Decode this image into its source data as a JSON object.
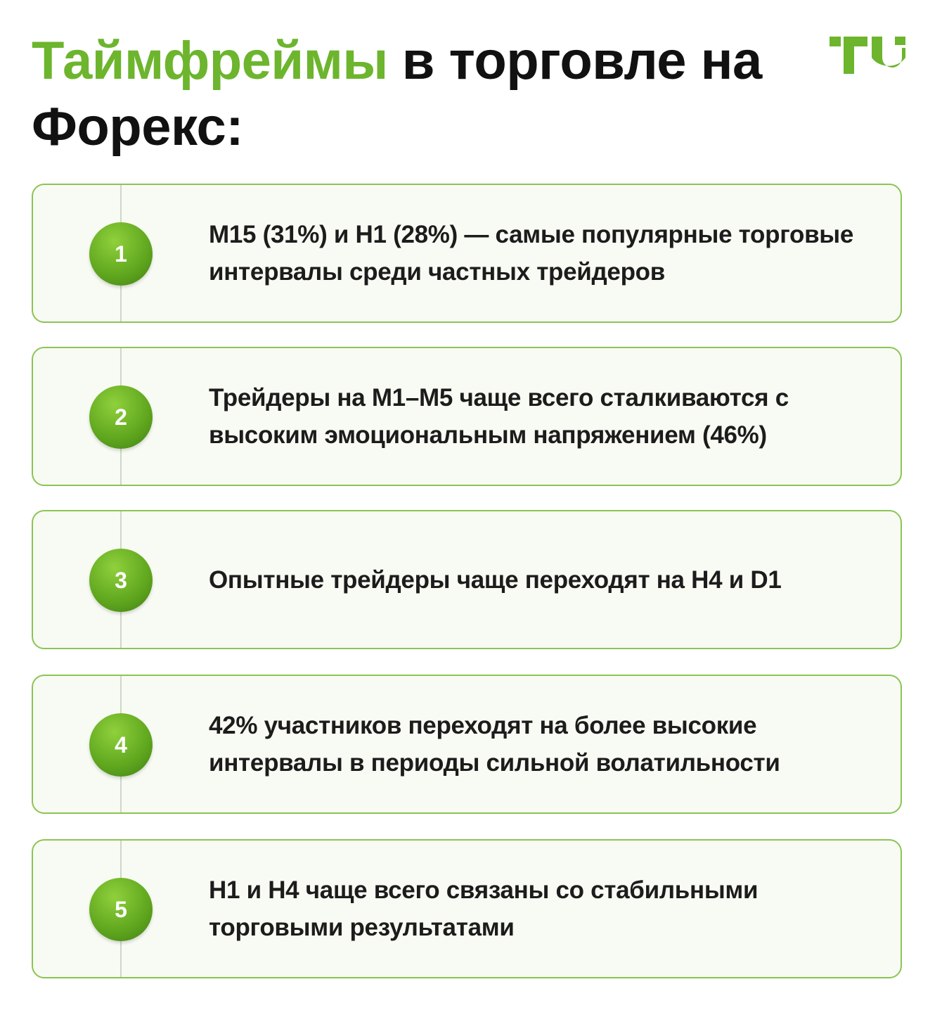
{
  "title": {
    "highlight": "Таймфреймы",
    "rest": "в торговле на Форекс:"
  },
  "items": [
    {
      "number": "1",
      "text": "M15 (31%) и H1 (28%) — самые популярные торговые интервалы среди частных трейдеров"
    },
    {
      "number": "2",
      "text": "Трейдеры на M1–M5 чаще всего сталкиваются с высоким эмоциональным напряжением (46%)"
    },
    {
      "number": "3",
      "text": "Опытные трейдеры чаще переходят на H4 и D1"
    },
    {
      "number": "4",
      "text": "42% участников переходят на более высокие интервалы в периоды сильной волатильности"
    },
    {
      "number": "5",
      "text": "H1 и H4 чаще всего связаны со стабильными торговыми результатами"
    }
  ]
}
